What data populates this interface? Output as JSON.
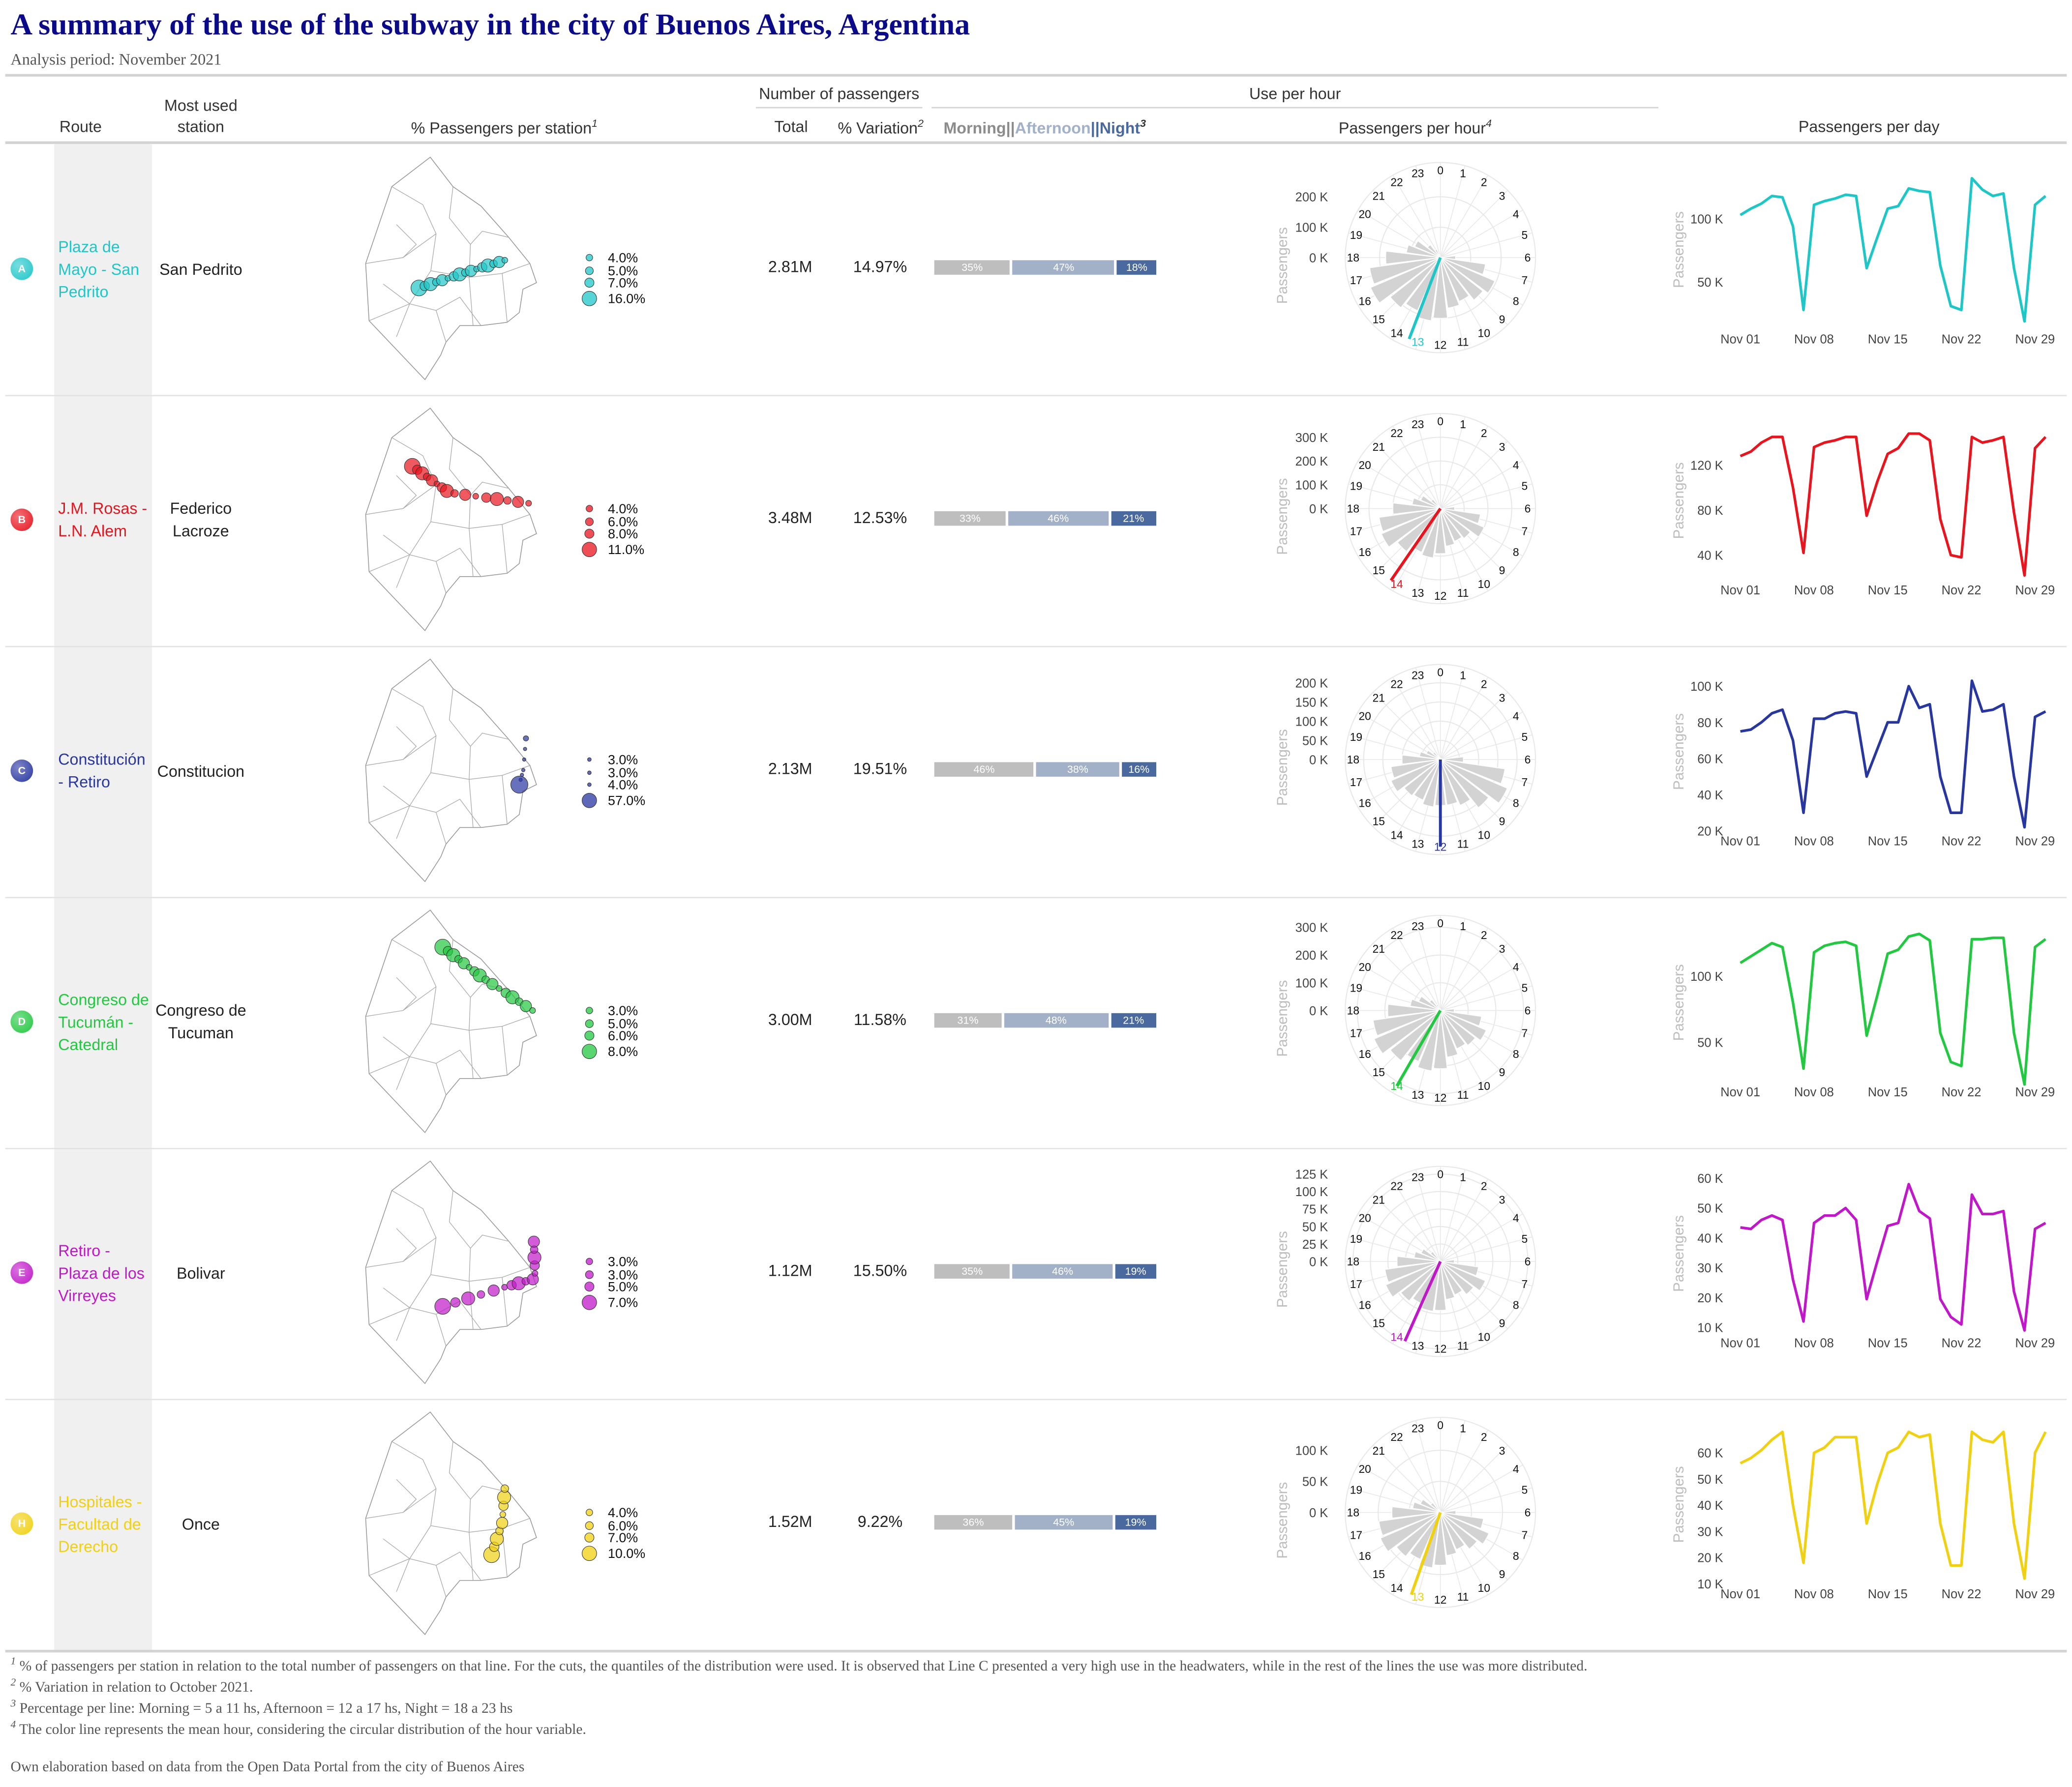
{
  "title": "A summary of the use of the subway in the city of Buenos Aires, Argentina",
  "subtitle": "Analysis period: November 2021",
  "header": {
    "route": "Route",
    "station_l1": "Most used",
    "station_l2": "station",
    "map_col": "% Passengers per station",
    "map_sup": "1",
    "passengers_group": "Number of passengers",
    "total": "Total",
    "variation": "% Variation",
    "variation_sup": "2",
    "use_per_hour": "Use per hour",
    "morning": "Morning",
    "sep1": "||",
    "afternoon": "Afternoon",
    "sep2": "||",
    "night": "Night",
    "shift_sup": "3",
    "per_hour": "Passengers per hour",
    "per_hour_sup": "4",
    "per_day": "Passengers per day"
  },
  "colors": {
    "morning": "#bebebe",
    "afternoon": "#a3b1c8",
    "night": "#4a699e",
    "bar_bg": "#d3d3d3",
    "grid": "#e8e8e8"
  },
  "axis_title": "Passengers",
  "hour_labels": [
    "0",
    "1",
    "2",
    "3",
    "4",
    "5",
    "6",
    "7",
    "8",
    "9",
    "10",
    "11",
    "12",
    "13",
    "14",
    "15",
    "16",
    "17",
    "18",
    "19",
    "20",
    "21",
    "22",
    "23"
  ],
  "day_tick_labels": [
    "Nov 01",
    "Nov 08",
    "Nov 15",
    "Nov 22",
    "Nov 29"
  ],
  "chart_data": [
    {
      "letter": "A",
      "name": "Plaza de Mayo - San Pedrito",
      "color": "#1fc6c8",
      "station": "San Pedrito",
      "total": "2.81M",
      "variation": "14.97%",
      "legend": [
        "4.0%",
        "5.0%",
        "7.0%",
        "16.0%"
      ],
      "shares": [
        35,
        47,
        18
      ],
      "share_labels": [
        "35%",
        "47%",
        "18%"
      ],
      "hourly": {
        "type": "polar-bar",
        "values_k": [
          0,
          0,
          0,
          0,
          0,
          5,
          50,
          150,
          195,
          178,
          157,
          168,
          200,
          210,
          190,
          210,
          250,
          235,
          180,
          113,
          92,
          54,
          30,
          10
        ],
        "ticks": [
          0,
          100,
          200
        ],
        "tick_labels": [
          "0 K",
          "100 K",
          "200 K"
        ],
        "max": 313,
        "mean_hour": 13.4,
        "mean_hour_label": "13"
      },
      "daily": {
        "type": "line",
        "values_k": [
          103,
          108,
          112,
          118,
          117,
          94,
          28,
          111,
          114,
          116,
          119,
          118,
          61,
          85,
          108,
          110,
          124,
          122,
          121,
          63,
          31,
          28,
          132,
          123,
          118,
          120,
          61,
          19,
          111,
          118
        ],
        "ticks": [
          50,
          100
        ],
        "tick_labels": [
          "50 K",
          "100 K"
        ],
        "ylim": [
          13,
          133
        ]
      }
    },
    {
      "letter": "B",
      "name": "J.M. Rosas - L.N. Alem",
      "color": "#e8141e",
      "station": "Federico Lacroze",
      "total": "3.48M",
      "variation": "12.53%",
      "legend": [
        "4.0%",
        "6.0%",
        "8.0%",
        "11.0%"
      ],
      "shares": [
        33,
        46,
        21
      ],
      "share_labels": [
        "33%",
        "46%",
        "21%"
      ],
      "hourly": {
        "type": "polar-bar",
        "values_k": [
          0,
          0,
          0,
          0,
          0,
          5,
          60,
          170,
          200,
          160,
          150,
          160,
          190,
          210,
          200,
          230,
          270,
          260,
          200,
          120,
          90,
          50,
          25,
          8
        ],
        "ticks": [
          0,
          100,
          200,
          300
        ],
        "tick_labels": [
          "0 K",
          "100 K",
          "200 K",
          "300 K"
        ],
        "max": 400,
        "mean_hour": 14.3,
        "mean_hour_label": "14"
      },
      "daily": {
        "type": "line",
        "values_k": [
          128,
          132,
          140,
          145,
          145,
          100,
          42,
          136,
          140,
          142,
          145,
          145,
          75,
          105,
          130,
          135,
          148,
          148,
          142,
          72,
          40,
          38,
          145,
          140,
          142,
          145,
          78,
          22,
          135,
          145
        ],
        "ticks": [
          40,
          80,
          120
        ],
        "tick_labels": [
          "40 K",
          "80 K",
          "120 K"
        ],
        "ylim": [
          18,
          153
        ]
      }
    },
    {
      "letter": "C",
      "name": "Constitución - Retiro",
      "color": "#2836a0",
      "station": "Constitucion",
      "total": "2.13M",
      "variation": "19.51%",
      "legend": [
        "3.0%",
        "3.0%",
        "4.0%",
        "57.0%"
      ],
      "shares": [
        46,
        38,
        16
      ],
      "share_labels": [
        "46%",
        "38%",
        "16%"
      ],
      "hourly": {
        "type": "polar-bar",
        "values_k": [
          0,
          0,
          0,
          0,
          0,
          5,
          60,
          170,
          190,
          160,
          130,
          120,
          120,
          125,
          115,
          120,
          140,
          130,
          100,
          55,
          40,
          25,
          12,
          5
        ],
        "ticks": [
          0,
          50,
          100,
          150,
          200
        ],
        "tick_labels": [
          "0 K",
          "50 K",
          "100 K",
          "150 K",
          "200 K"
        ],
        "max": 248,
        "mean_hour": 12.0,
        "mean_hour_label": "12"
      },
      "daily": {
        "type": "line",
        "values_k": [
          75,
          76,
          80,
          85,
          87,
          70,
          30,
          82,
          82,
          85,
          86,
          85,
          50,
          65,
          80,
          80,
          100,
          88,
          90,
          50,
          30,
          30,
          103,
          86,
          87,
          90,
          50,
          22,
          83,
          86
        ],
        "ticks": [
          20,
          40,
          60,
          80,
          100
        ],
        "tick_labels": [
          "20 K",
          "40 K",
          "60 K",
          "80 K",
          "100 K"
        ],
        "ylim": [
          20,
          104
        ]
      }
    },
    {
      "letter": "D",
      "name": "Congreso de Tucumán - Catedral",
      "color": "#22c840",
      "station": "Congreso de Tucuman",
      "total": "3.00M",
      "variation": "11.58%",
      "legend": [
        "3.0%",
        "5.0%",
        "6.0%",
        "8.0%"
      ],
      "shares": [
        31,
        48,
        21
      ],
      "share_labels": [
        "31%",
        "48%",
        "21%"
      ],
      "hourly": {
        "type": "polar-bar",
        "values_k": [
          0,
          0,
          0,
          0,
          0,
          5,
          50,
          150,
          180,
          160,
          150,
          170,
          210,
          220,
          200,
          230,
          260,
          245,
          190,
          110,
          85,
          50,
          25,
          8
        ],
        "ticks": [
          0,
          100,
          200,
          300
        ],
        "tick_labels": [
          "0 K",
          "100 K",
          "200 K",
          "300 K"
        ],
        "max": 343,
        "mean_hour": 14.0,
        "mean_hour_label": "14"
      },
      "daily": {
        "type": "line",
        "values_k": [
          110,
          115,
          120,
          125,
          122,
          80,
          30,
          118,
          123,
          125,
          126,
          123,
          55,
          85,
          117,
          120,
          130,
          132,
          127,
          57,
          35,
          32,
          128,
          128,
          129,
          129,
          57,
          18,
          122,
          128
        ],
        "ticks": [
          50,
          100
        ],
        "tick_labels": [
          "50 K",
          "100 K"
        ],
        "ylim": [
          20,
          135
        ]
      }
    },
    {
      "letter": "E",
      "name": "Retiro - Plaza de los Virreyes",
      "color": "#c018c8",
      "station": "Bolivar",
      "total": "1.12M",
      "variation": "15.50%",
      "legend": [
        "3.0%",
        "3.0%",
        "5.0%",
        "7.0%"
      ],
      "shares": [
        35,
        46,
        19
      ],
      "share_labels": [
        "35%",
        "46%",
        "19%"
      ],
      "hourly": {
        "type": "polar-bar",
        "values_k": [
          0,
          0,
          0,
          0,
          0,
          2,
          20,
          55,
          70,
          60,
          52,
          55,
          70,
          72,
          66,
          72,
          85,
          80,
          62,
          38,
          30,
          18,
          9,
          3
        ],
        "ticks": [
          0,
          25,
          50,
          75,
          100,
          125
        ],
        "tick_labels": [
          "0 K",
          "25 K",
          "50 K",
          "75 K",
          "100 K",
          "125 K"
        ],
        "max": 136,
        "mean_hour": 13.6,
        "mean_hour_label": "14"
      },
      "daily": {
        "type": "line",
        "values_k": [
          43.5,
          43,
          46,
          47.5,
          46,
          26,
          12,
          45,
          47.5,
          47.5,
          50,
          46,
          19.5,
          32,
          44,
          45,
          58,
          49,
          46.5,
          19.5,
          13.5,
          11,
          54.5,
          48,
          48,
          49,
          22,
          9,
          43,
          45
        ],
        "ticks": [
          10,
          20,
          30,
          40,
          50,
          60
        ],
        "tick_labels": [
          "10 K",
          "20 K",
          "30 K",
          "40 K",
          "50 K",
          "60 K"
        ],
        "ylim": [
          8.2,
          59.1
        ]
      }
    },
    {
      "letter": "H",
      "name": "Hospitales - Facultad de Derecho",
      "color": "#f0d010",
      "station": "Once",
      "total": "1.52M",
      "variation": "9.22%",
      "legend": [
        "4.0%",
        "6.0%",
        "7.0%",
        "10.0%"
      ],
      "shares": [
        36,
        45,
        19
      ],
      "share_labels": [
        "36%",
        "45%",
        "19%"
      ],
      "hourly": {
        "type": "polar-bar",
        "values_k": [
          0,
          0,
          0,
          0,
          0,
          3,
          25,
          70,
          85,
          75,
          65,
          70,
          85,
          90,
          82,
          90,
          105,
          100,
          78,
          45,
          35,
          20,
          10,
          4
        ],
        "ticks": [
          0,
          50,
          100
        ],
        "tick_labels": [
          "0 K",
          "50 K",
          "100 K"
        ],
        "max": 153,
        "mean_hour": 13.3,
        "mean_hour_label": "13"
      },
      "daily": {
        "type": "line",
        "values_k": [
          56,
          58,
          61,
          65,
          68,
          40,
          18,
          60,
          62,
          66,
          66,
          66,
          33,
          48,
          60,
          62,
          68,
          66,
          67,
          33,
          17,
          17,
          68,
          65,
          64,
          68,
          33,
          12,
          60,
          68
        ],
        "ticks": [
          10,
          20,
          30,
          40,
          50,
          60
        ],
        "tick_labels": [
          "10 K",
          "20 K",
          "30 K",
          "40 K",
          "50 K",
          "60 K"
        ],
        "ylim": [
          10,
          68
        ]
      }
    }
  ],
  "footnotes": [
    {
      "sup": "1",
      "text": "% of passengers per station in relation to the total number of passengers on that line. For the cuts, the quantiles of the distribution were used. It is observed that Line C presented a very high use in the headwaters, while in the rest of the lines the use was more distributed."
    },
    {
      "sup": "2",
      "text": "% Variation in relation to October 2021."
    },
    {
      "sup": "3",
      "text": "Percentage per line: Morning = 5 a 11 hs, Afternoon = 12 a 17 hs, Night = 18 a 23 hs"
    },
    {
      "sup": "4",
      "text": "The color line represents the mean hour, considering the circular distribution of the hour variable."
    }
  ],
  "source": "Own elaboration based on data from the Open Data Portal from the city of Buenos Aires"
}
